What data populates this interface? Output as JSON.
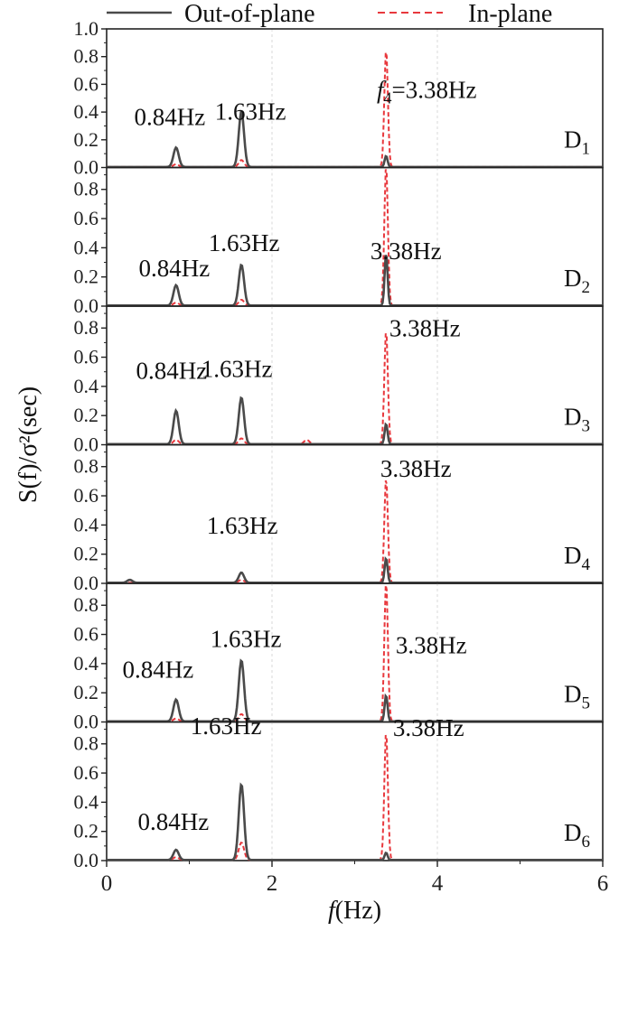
{
  "chart_data": {
    "type": "line",
    "legend": {
      "placement": "top",
      "entries": [
        {
          "label": "Out-of-plane",
          "color": "#4a4a4a",
          "style": "solid"
        },
        {
          "label": "In-plane",
          "color": "#e8383d",
          "style": "dashed"
        }
      ]
    },
    "xaxis": {
      "title_italic": "f",
      "title_rest": "(Hz)",
      "range": [
        0,
        6
      ],
      "ticks": [
        "0",
        "2",
        "4",
        "6"
      ]
    },
    "yaxis": {
      "title": "S(f)/σ²(sec)"
    },
    "series_colors": {
      "out_of_plane": "#4a4a4a",
      "in_plane": "#e8383d"
    },
    "panels": [
      {
        "label_main": "D",
        "label_sub": "1",
        "ylim": [
          0,
          1.0
        ],
        "yticks": [
          "0.0",
          "0.2",
          "0.4",
          "0.6",
          "0.8",
          "1.0"
        ],
        "out_of_plane_peaks": [
          {
            "f": 0.84,
            "s": 0.14
          },
          {
            "f": 1.63,
            "s": 0.4
          },
          {
            "f": 3.38,
            "s": 0.08
          }
        ],
        "in_plane_peaks": [
          {
            "f": 0.84,
            "s": 0.02
          },
          {
            "f": 1.63,
            "s": 0.05
          },
          {
            "f": 3.38,
            "s": 0.85
          }
        ],
        "annotations": [
          {
            "text": "0.84Hz",
            "f": 0.84
          },
          {
            "text": "1.63Hz",
            "f": 1.63
          },
          {
            "text_italic": "f",
            "text_sub": "4",
            "text": "=3.38Hz",
            "f": 3.38
          }
        ]
      },
      {
        "label_main": "D",
        "label_sub": "2",
        "ylim": [
          0,
          0.95
        ],
        "yticks": [
          "0.0",
          "0.2",
          "0.4",
          "0.6",
          "0.8"
        ],
        "out_of_plane_peaks": [
          {
            "f": 0.84,
            "s": 0.14
          },
          {
            "f": 1.63,
            "s": 0.28
          },
          {
            "f": 3.38,
            "s": 0.36
          }
        ],
        "in_plane_peaks": [
          {
            "f": 0.84,
            "s": 0.02
          },
          {
            "f": 1.63,
            "s": 0.04
          },
          {
            "f": 3.38,
            "s": 0.96
          }
        ],
        "annotations": [
          {
            "text": "0.84Hz",
            "f": 0.84
          },
          {
            "text": "1.63Hz",
            "f": 1.63
          },
          {
            "text": "3.38Hz",
            "f": 3.38
          }
        ]
      },
      {
        "label_main": "D",
        "label_sub": "3",
        "ylim": [
          0,
          0.95
        ],
        "yticks": [
          "0.0",
          "0.2",
          "0.4",
          "0.6",
          "0.8"
        ],
        "out_of_plane_peaks": [
          {
            "f": 0.84,
            "s": 0.23
          },
          {
            "f": 1.63,
            "s": 0.32
          },
          {
            "f": 3.38,
            "s": 0.14
          }
        ],
        "in_plane_peaks": [
          {
            "f": 0.84,
            "s": 0.03
          },
          {
            "f": 1.63,
            "s": 0.04
          },
          {
            "f": 2.42,
            "s": 0.03
          },
          {
            "f": 3.38,
            "s": 0.78
          }
        ],
        "annotations": [
          {
            "text": "0.84Hz",
            "f": 0.84
          },
          {
            "text": "1.63Hz",
            "f": 1.63
          },
          {
            "text": "3.38Hz",
            "f": 3.38
          }
        ]
      },
      {
        "label_main": "D",
        "label_sub": "4",
        "ylim": [
          0,
          0.95
        ],
        "yticks": [
          "0.0",
          "0.2",
          "0.4",
          "0.6",
          "0.8"
        ],
        "out_of_plane_peaks": [
          {
            "f": 0.28,
            "s": 0.02
          },
          {
            "f": 1.63,
            "s": 0.07
          },
          {
            "f": 3.38,
            "s": 0.17
          }
        ],
        "in_plane_peaks": [
          {
            "f": 1.63,
            "s": 0.02
          },
          {
            "f": 3.38,
            "s": 0.72
          }
        ],
        "annotations": [
          {
            "text": "1.63Hz",
            "f": 1.63
          },
          {
            "text": "3.38Hz",
            "f": 3.38
          }
        ]
      },
      {
        "label_main": "D",
        "label_sub": "5",
        "ylim": [
          0,
          0.95
        ],
        "yticks": [
          "0.0",
          "0.2",
          "0.4",
          "0.6",
          "0.8"
        ],
        "out_of_plane_peaks": [
          {
            "f": 0.84,
            "s": 0.15
          },
          {
            "f": 1.63,
            "s": 0.42
          },
          {
            "f": 3.38,
            "s": 0.18
          }
        ],
        "in_plane_peaks": [
          {
            "f": 0.84,
            "s": 0.02
          },
          {
            "f": 1.63,
            "s": 0.05
          },
          {
            "f": 3.38,
            "s": 0.96
          }
        ],
        "annotations": [
          {
            "text": "0.84Hz",
            "f": 0.84
          },
          {
            "text": "1.63Hz",
            "f": 1.63
          },
          {
            "text": "3.38Hz",
            "f": 3.38
          }
        ]
      },
      {
        "label_main": "D",
        "label_sub": "6",
        "ylim": [
          0,
          0.95
        ],
        "yticks": [
          "0.0",
          "0.2",
          "0.4",
          "0.6",
          "0.8"
        ],
        "out_of_plane_peaks": [
          {
            "f": 0.84,
            "s": 0.07
          },
          {
            "f": 1.63,
            "s": 0.52
          },
          {
            "f": 3.38,
            "s": 0.05
          }
        ],
        "in_plane_peaks": [
          {
            "f": 0.84,
            "s": 0.02
          },
          {
            "f": 1.63,
            "s": 0.12
          },
          {
            "f": 3.38,
            "s": 0.88
          }
        ],
        "annotations": [
          {
            "text": "0.84Hz",
            "f": 0.84
          },
          {
            "text": "1.63Hz",
            "f": 1.63
          },
          {
            "text": "3.38Hz",
            "f": 3.38
          }
        ]
      }
    ]
  }
}
